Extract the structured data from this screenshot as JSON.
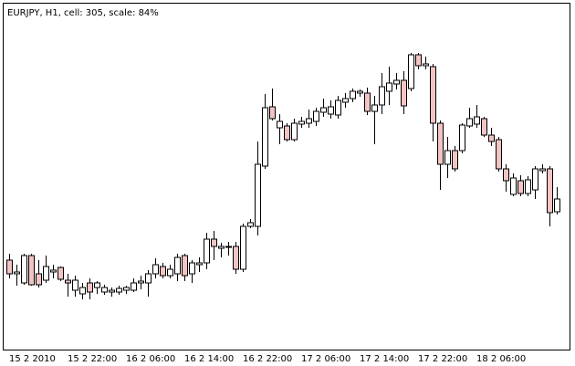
{
  "chart_data": {
    "type": "candlestick",
    "title": "EURJPY, H1, cell: 305, scale: 84%",
    "categories": [
      "15 2 2010",
      null,
      null,
      null,
      null,
      null,
      null,
      null,
      "15 2 22:00",
      null,
      null,
      null,
      null,
      null,
      null,
      null,
      "16 2 06:00",
      null,
      null,
      null,
      null,
      null,
      null,
      null,
      "16 2 14:00",
      null,
      null,
      null,
      null,
      null,
      null,
      null,
      "16 2 22:00",
      null,
      null,
      null,
      null,
      null,
      null,
      null,
      "17 2 06:00",
      null,
      null,
      null,
      null,
      null,
      null,
      null,
      "17 2 14:00",
      null,
      null,
      null,
      null,
      null,
      null,
      null,
      "17 2 22:00",
      null,
      null,
      null,
      null,
      null,
      null,
      null,
      "18 2 06:00",
      null,
      null,
      null,
      null,
      null,
      null,
      null,
      null,
      null,
      null,
      null
    ],
    "open": [
      115,
      100,
      90,
      120,
      100,
      93,
      102,
      107,
      93,
      82,
      78,
      90,
      85,
      80,
      80,
      80,
      82,
      82,
      90,
      90,
      100,
      108,
      98,
      100,
      120,
      100,
      110,
      112,
      138,
      128,
      130,
      130,
      105,
      152,
      152,
      218,
      283,
      260,
      262,
      247,
      264,
      265,
      267,
      277,
      275,
      274,
      288,
      292,
      298,
      298,
      278,
      285,
      300,
      308,
      312,
      303,
      340,
      328,
      327,
      265,
      220,
      235,
      235,
      262,
      264,
      270,
      252,
      247,
      215,
      187,
      202,
      188,
      192,
      213,
      215,
      168
    ],
    "high": [
      122,
      110,
      122,
      122,
      115,
      120,
      110,
      108,
      100,
      98,
      90,
      95,
      92,
      88,
      85,
      87,
      87,
      95,
      98,
      104,
      117,
      112,
      110,
      122,
      122,
      115,
      118,
      145,
      147,
      134,
      135,
      135,
      155,
      160,
      245,
      297,
      303,
      275,
      265,
      270,
      272,
      280,
      282,
      292,
      290,
      295,
      298,
      303,
      302,
      304,
      295,
      320,
      327,
      320,
      322,
      342,
      342,
      338,
      330,
      268,
      250,
      240,
      265,
      282,
      285,
      272,
      260,
      250,
      220,
      210,
      208,
      207,
      218,
      220,
      218,
      195
    ],
    "low": [
      95,
      87,
      88,
      87,
      85,
      90,
      95,
      92,
      75,
      75,
      72,
      72,
      78,
      77,
      75,
      77,
      78,
      80,
      83,
      75,
      95,
      95,
      95,
      92,
      92,
      90,
      102,
      105,
      115,
      118,
      120,
      100,
      102,
      150,
      142,
      215,
      268,
      242,
      245,
      245,
      260,
      260,
      262,
      272,
      270,
      270,
      282,
      288,
      294,
      274,
      242,
      275,
      285,
      302,
      275,
      300,
      324,
      324,
      245,
      192,
      205,
      212,
      232,
      260,
      260,
      250,
      240,
      212,
      190,
      185,
      185,
      185,
      182,
      210,
      152,
      165
    ],
    "close": [
      100,
      102,
      120,
      88,
      88,
      108,
      104,
      94,
      90,
      93,
      85,
      80,
      90,
      85,
      82,
      84,
      85,
      90,
      92,
      100,
      110,
      98,
      105,
      118,
      98,
      112,
      112,
      138,
      130,
      130,
      130,
      105,
      152,
      156,
      220,
      282,
      270,
      267,
      247,
      265,
      267,
      270,
      278,
      282,
      283,
      290,
      292,
      300,
      300,
      278,
      285,
      305,
      309,
      312,
      284,
      340,
      328,
      330,
      265,
      220,
      235,
      215,
      263,
      270,
      272,
      252,
      245,
      215,
      202,
      205,
      188,
      203,
      215,
      215,
      167,
      182
    ],
    "ylim": [
      17,
      396
    ],
    "up_color": "#ffffff",
    "down_color": "#f2c4c4"
  }
}
